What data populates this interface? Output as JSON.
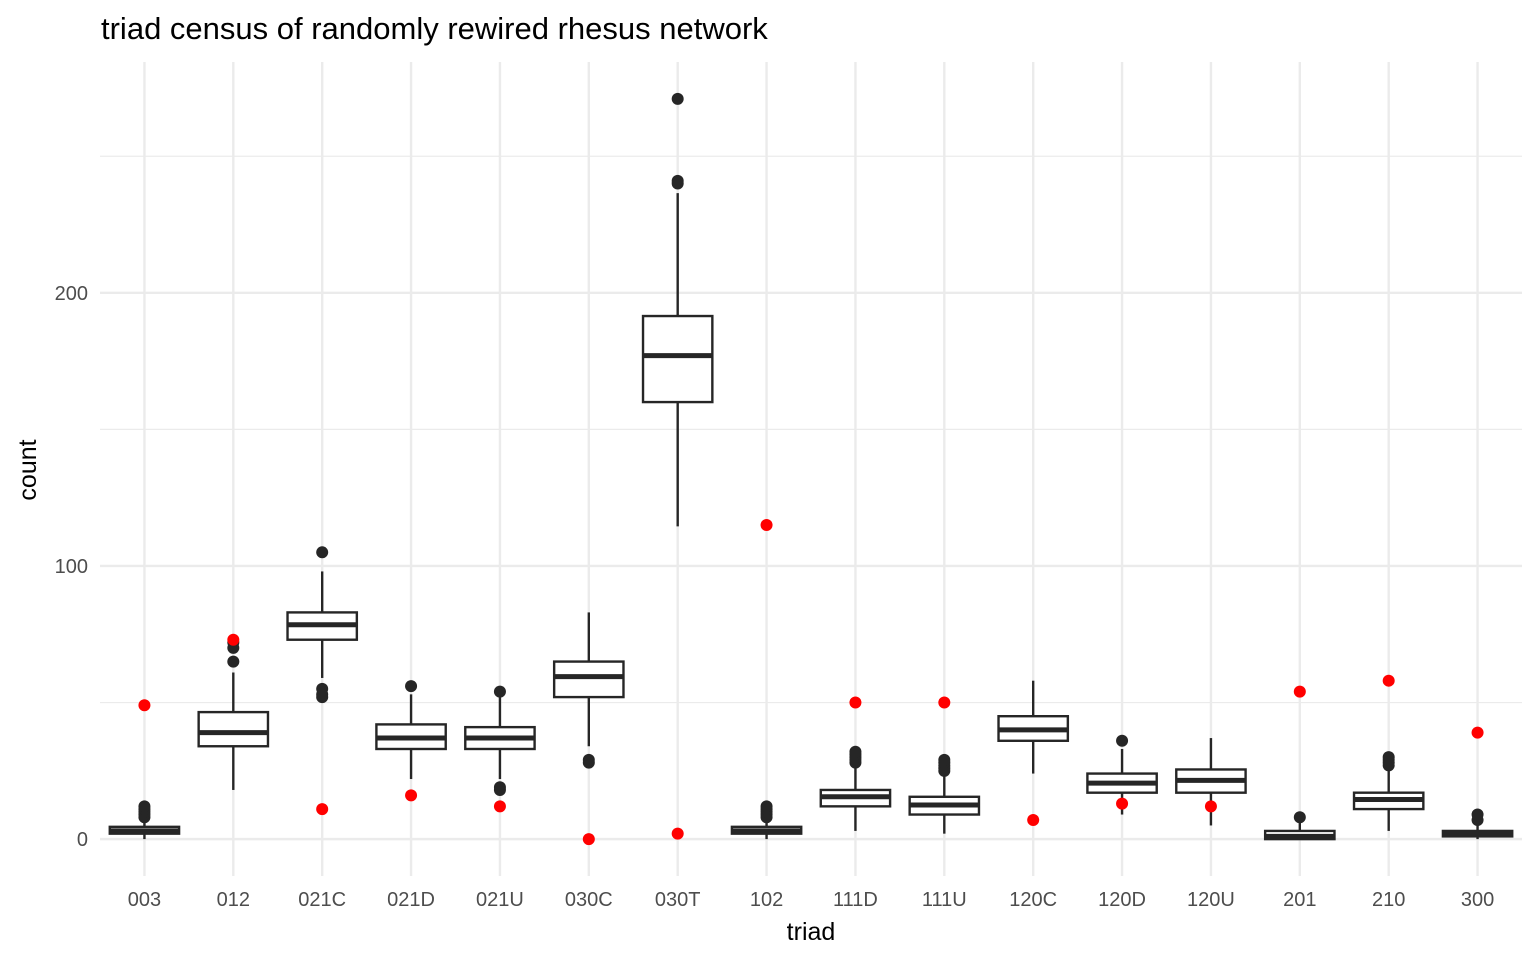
{
  "chart_data": {
    "type": "box",
    "title": "triad census of randomly rewired rhesus network",
    "xlabel": "triad",
    "ylabel": "count",
    "ylim": [
      -13.5,
      284.5
    ],
    "yticks": [
      0,
      100,
      200
    ],
    "yticks_minor": [
      50,
      150,
      250
    ],
    "grid": true,
    "colors": {
      "box": "#262626",
      "observed": "#ff0000",
      "grid": "#ebebeb",
      "text": "#4d4d4d"
    },
    "categories": [
      "003",
      "012",
      "021C",
      "021D",
      "021U",
      "030C",
      "030T",
      "102",
      "111D",
      "111U",
      "120C",
      "120D",
      "120U",
      "201",
      "210",
      "300"
    ],
    "boxes": [
      {
        "lower": 0,
        "q1": 2,
        "median": 3,
        "q3": 4.5,
        "upper": 7,
        "outliers": [
          8,
          9,
          10,
          11,
          12
        ]
      },
      {
        "lower": 18,
        "q1": 34,
        "median": 39,
        "q3": 46.5,
        "upper": 61,
        "outliers": [
          65,
          70,
          72
        ]
      },
      {
        "lower": 59,
        "q1": 73,
        "median": 78.5,
        "q3": 83,
        "upper": 98,
        "outliers": [
          52,
          53,
          55,
          105
        ]
      },
      {
        "lower": 22,
        "q1": 33,
        "median": 37,
        "q3": 42,
        "upper": 53,
        "outliers": [
          56
        ]
      },
      {
        "lower": 22,
        "q1": 33,
        "median": 37,
        "q3": 41,
        "upper": 52,
        "outliers": [
          18,
          19,
          54
        ]
      },
      {
        "lower": 34,
        "q1": 52,
        "median": 59.5,
        "q3": 65,
        "upper": 83,
        "outliers": [
          28,
          29
        ]
      },
      {
        "lower": 114.5,
        "q1": 160,
        "median": 177,
        "q3": 191.5,
        "upper": 236.5,
        "outliers": [
          240,
          241,
          271
        ]
      },
      {
        "lower": 0,
        "q1": 2,
        "median": 3,
        "q3": 4.5,
        "upper": 7,
        "outliers": [
          8,
          9,
          10,
          11,
          12
        ]
      },
      {
        "lower": 3,
        "q1": 12,
        "median": 15.5,
        "q3": 18,
        "upper": 27,
        "outliers": [
          28,
          29,
          30,
          31,
          32
        ]
      },
      {
        "lower": 2,
        "q1": 9,
        "median": 12.5,
        "q3": 15.5,
        "upper": 24,
        "outliers": [
          25,
          26,
          27,
          28,
          29
        ]
      },
      {
        "lower": 24,
        "q1": 36,
        "median": 40,
        "q3": 45,
        "upper": 58,
        "outliers": []
      },
      {
        "lower": 9,
        "q1": 17,
        "median": 20.5,
        "q3": 24,
        "upper": 33,
        "outliers": [
          36
        ]
      },
      {
        "lower": 5,
        "q1": 17,
        "median": 21.5,
        "q3": 25.5,
        "upper": 37,
        "outliers": []
      },
      {
        "lower": 0,
        "q1": 0,
        "median": 1,
        "q3": 3,
        "upper": 6,
        "outliers": [
          8
        ]
      },
      {
        "lower": 3,
        "q1": 11,
        "median": 14.5,
        "q3": 17,
        "upper": 26,
        "outliers": [
          27,
          28,
          29,
          30
        ]
      },
      {
        "lower": 0,
        "q1": 1,
        "median": 2,
        "q3": 3,
        "upper": 5,
        "outliers": [
          7,
          9
        ]
      }
    ],
    "observed": [
      49,
      73,
      11,
      16,
      12,
      0,
      2,
      115,
      50,
      50,
      7,
      13,
      12,
      54,
      58,
      39
    ]
  }
}
